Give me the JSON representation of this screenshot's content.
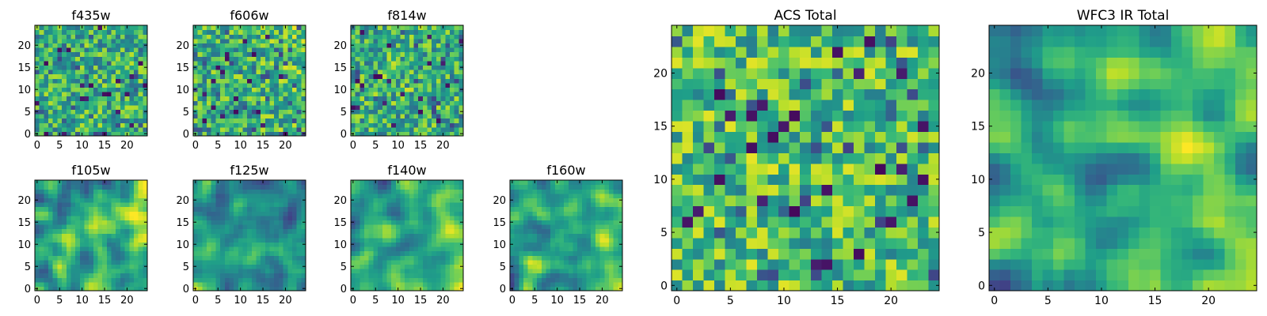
{
  "chart_data": [
    {
      "type": "heatmap",
      "title": "f435w",
      "grid_size": 25,
      "xlim": [
        0,
        24
      ],
      "ylim": [
        0,
        24
      ],
      "xticks": [
        0,
        5,
        10,
        15,
        20
      ],
      "yticks": [
        0,
        5,
        10,
        15,
        20
      ],
      "colormap": "viridis",
      "pattern": "noise-mid"
    },
    {
      "type": "heatmap",
      "title": "f606w",
      "grid_size": 25,
      "xlim": [
        0,
        24
      ],
      "ylim": [
        0,
        24
      ],
      "xticks": [
        0,
        5,
        10,
        15,
        20
      ],
      "yticks": [
        0,
        5,
        10,
        15,
        20
      ],
      "colormap": "viridis",
      "pattern": "noise-right-bright"
    },
    {
      "type": "heatmap",
      "title": "f814w",
      "grid_size": 25,
      "xlim": [
        0,
        24
      ],
      "ylim": [
        0,
        24
      ],
      "xticks": [
        0,
        5,
        10,
        15,
        20
      ],
      "yticks": [
        0,
        5,
        10,
        15,
        20
      ],
      "colormap": "viridis",
      "pattern": "noise-center-bright"
    },
    {
      "type": "heatmap",
      "title": "f105w",
      "grid_size": 25,
      "xlim": [
        0,
        24
      ],
      "ylim": [
        0,
        24
      ],
      "xticks": [
        0,
        5,
        10,
        15,
        20
      ],
      "yticks": [
        0,
        5,
        10,
        15,
        20
      ],
      "colormap": "viridis",
      "pattern": "smooth-right-bright"
    },
    {
      "type": "heatmap",
      "title": "f125w",
      "grid_size": 25,
      "xlim": [
        0,
        24
      ],
      "ylim": [
        0,
        24
      ],
      "xticks": [
        0,
        5,
        10,
        15,
        20
      ],
      "yticks": [
        0,
        5,
        10,
        15,
        20
      ],
      "colormap": "viridis",
      "pattern": "smooth-center-bright"
    },
    {
      "type": "heatmap",
      "title": "f140w",
      "grid_size": 25,
      "xlim": [
        0,
        24
      ],
      "ylim": [
        0,
        24
      ],
      "xticks": [
        0,
        5,
        10,
        15,
        20
      ],
      "yticks": [
        0,
        5,
        10,
        15,
        20
      ],
      "colormap": "viridis",
      "pattern": "smooth-right-bright"
    },
    {
      "type": "heatmap",
      "title": "f160w",
      "grid_size": 25,
      "xlim": [
        0,
        24
      ],
      "ylim": [
        0,
        24
      ],
      "xticks": [
        0,
        5,
        10,
        15,
        20
      ],
      "yticks": [
        0,
        5,
        10,
        15,
        20
      ],
      "colormap": "viridis",
      "pattern": "smooth-right-bright"
    },
    {
      "type": "heatmap",
      "title": "ACS Total",
      "grid_size": 25,
      "xlim": [
        0,
        24
      ],
      "ylim": [
        0,
        24
      ],
      "xticks": [
        0,
        5,
        10,
        15,
        20
      ],
      "yticks": [
        0,
        5,
        10,
        15,
        20
      ],
      "colormap": "viridis",
      "pattern": "noise-mid-bright"
    },
    {
      "type": "heatmap",
      "title": "WFC3 IR Total",
      "grid_size": 25,
      "xlim": [
        0,
        24
      ],
      "ylim": [
        0,
        24
      ],
      "xticks": [
        0,
        5,
        10,
        15,
        20
      ],
      "yticks": [
        0,
        5,
        10,
        15,
        20
      ],
      "colormap": "viridis",
      "pattern": "smooth-right-bright"
    }
  ]
}
